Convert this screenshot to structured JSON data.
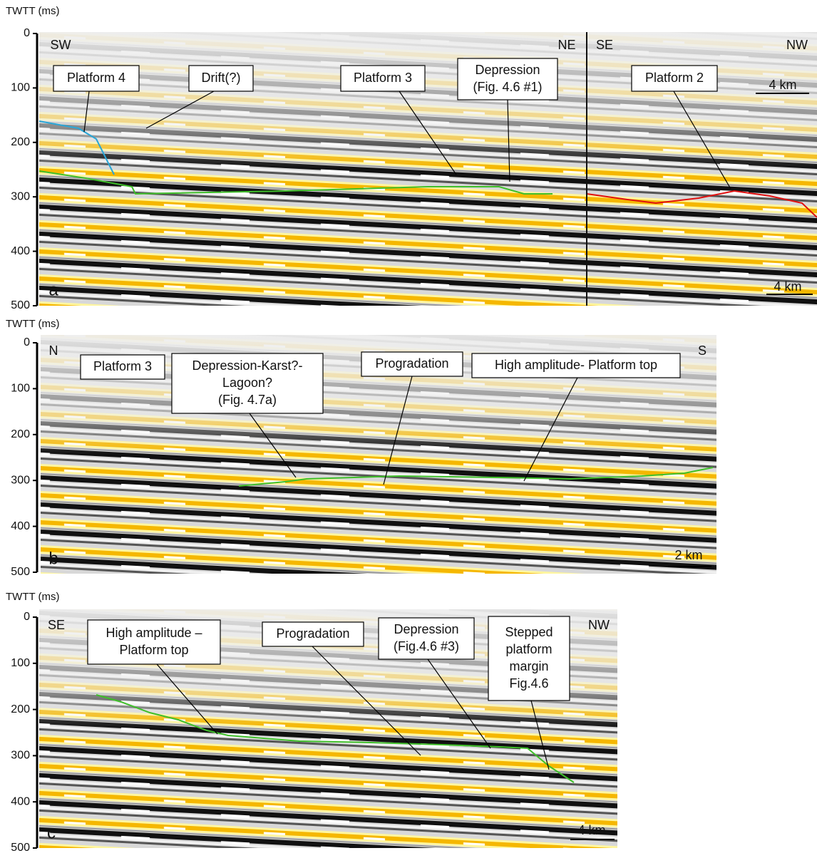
{
  "panels": [
    {
      "letter": "a",
      "axis_label": "TWTT (ms)",
      "yticks": [
        0,
        100,
        200,
        300,
        400,
        500
      ],
      "orientations": [
        "SW",
        "NE",
        "SE",
        "NW"
      ],
      "scale_bars": [
        "4 km",
        "4 km"
      ],
      "annotations": [
        [
          "Platform 4"
        ],
        [
          "Drift(?)"
        ],
        [
          "Platform 3"
        ],
        [
          "Depression",
          "(Fig. 4.6 #1)"
        ],
        [
          "Platform 2"
        ]
      ]
    },
    {
      "letter": "b",
      "axis_label": "TWTT (ms)",
      "yticks": [
        0,
        100,
        200,
        300,
        400,
        500
      ],
      "orientations": [
        "N",
        "S"
      ],
      "scale_bars": [
        "2 km"
      ],
      "annotations": [
        [
          "Platform 3"
        ],
        [
          "Depression-Karst?-",
          "Lagoon?",
          "(Fig. 4.7a)"
        ],
        [
          "Progradation"
        ],
        [
          "High amplitude- Platform top"
        ]
      ]
    },
    {
      "letter": "c",
      "axis_label": "TWTT (ms)",
      "yticks": [
        0,
        100,
        200,
        300,
        400,
        500
      ],
      "orientations": [
        "SE",
        "NW"
      ],
      "scale_bars": [
        "4 km"
      ],
      "annotations": [
        [
          "High amplitude –",
          "Platform top"
        ],
        [
          "Progradation"
        ],
        [
          "Depression",
          "(Fig.4.6  #3)"
        ],
        [
          "Stepped",
          "platform",
          "margin",
          "Fig.4.6"
        ]
      ]
    }
  ]
}
